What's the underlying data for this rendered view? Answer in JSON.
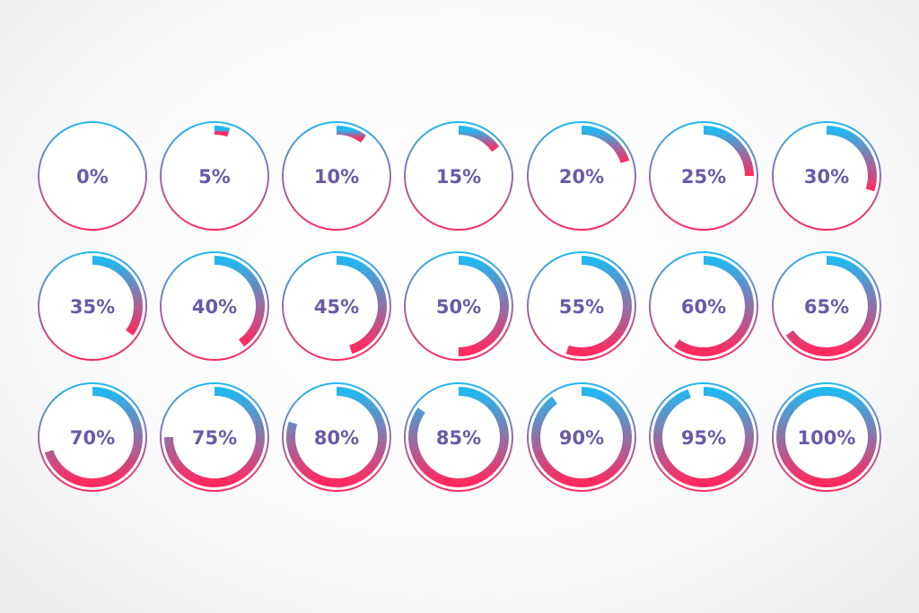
{
  "colors": {
    "start": "#22b8f0",
    "end": "#ff2a5f",
    "label": "#6a5aa6",
    "background": "#f7f7f8"
  },
  "indicators": [
    {
      "label": "0%",
      "value": 0
    },
    {
      "label": "5%",
      "value": 5
    },
    {
      "label": "10%",
      "value": 10
    },
    {
      "label": "15%",
      "value": 15
    },
    {
      "label": "20%",
      "value": 20
    },
    {
      "label": "25%",
      "value": 25
    },
    {
      "label": "30%",
      "value": 30
    },
    {
      "label": "35%",
      "value": 35
    },
    {
      "label": "40%",
      "value": 40
    },
    {
      "label": "45%",
      "value": 45
    },
    {
      "label": "50%",
      "value": 50
    },
    {
      "label": "55%",
      "value": 55
    },
    {
      "label": "60%",
      "value": 60
    },
    {
      "label": "65%",
      "value": 65
    },
    {
      "label": "70%",
      "value": 70
    },
    {
      "label": "75%",
      "value": 75
    },
    {
      "label": "80%",
      "value": 80
    },
    {
      "label": "85%",
      "value": 85
    },
    {
      "label": "90%",
      "value": 90
    },
    {
      "label": "95%",
      "value": 95
    },
    {
      "label": "100%",
      "value": 100
    }
  ]
}
